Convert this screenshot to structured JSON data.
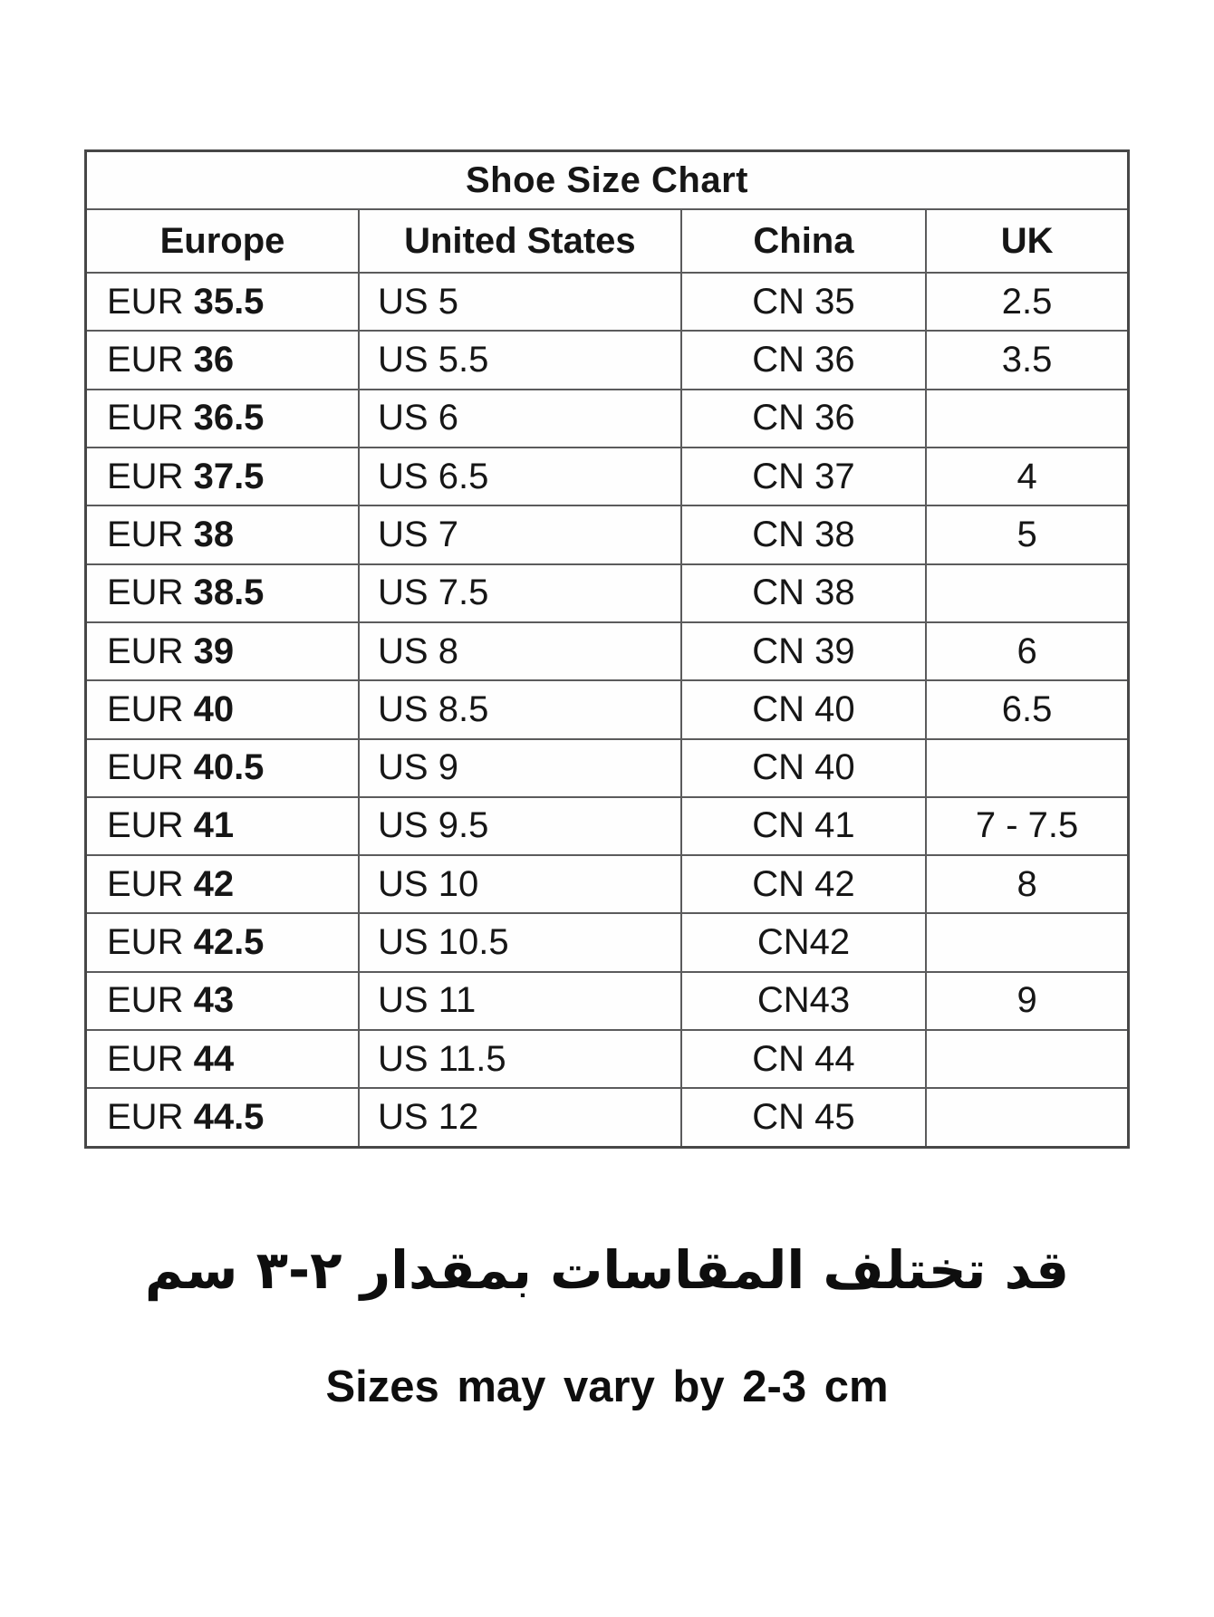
{
  "table": {
    "title": "Shoe Size Chart",
    "columns": [
      "Europe",
      "United States",
      "China",
      "UK"
    ],
    "rows": [
      {
        "eur_label": "EUR",
        "eur_value": "35.5",
        "us": "US 5",
        "china": "CN 35",
        "uk": "2.5"
      },
      {
        "eur_label": "EUR",
        "eur_value": "36",
        "us": "US 5.5",
        "china": "CN 36",
        "uk": "3.5"
      },
      {
        "eur_label": "EUR",
        "eur_value": "36.5",
        "us": "US 6",
        "china": "CN 36",
        "uk": ""
      },
      {
        "eur_label": "EUR",
        "eur_value": "37.5",
        "us": "US 6.5",
        "china": "CN 37",
        "uk": "4"
      },
      {
        "eur_label": "EUR",
        "eur_value": "38",
        "us": "US 7",
        "china": "CN 38",
        "uk": "5"
      },
      {
        "eur_label": "EUR",
        "eur_value": "38.5",
        "us": "US 7.5",
        "china": "CN 38",
        "uk": ""
      },
      {
        "eur_label": "EUR",
        "eur_value": "39",
        "us": "US 8",
        "china": "CN 39",
        "uk": "6"
      },
      {
        "eur_label": "EUR",
        "eur_value": "40",
        "us": "US 8.5",
        "china": "CN 40",
        "uk": "6.5"
      },
      {
        "eur_label": "EUR",
        "eur_value": "40.5",
        "us": "US 9",
        "china": "CN 40",
        "uk": ""
      },
      {
        "eur_label": "EUR",
        "eur_value": "41",
        "us": "US 9.5",
        "china": "CN 41",
        "uk": "7 - 7.5"
      },
      {
        "eur_label": "EUR",
        "eur_value": "42",
        "us": "US 10",
        "china": "CN 42",
        "uk": "8"
      },
      {
        "eur_label": "EUR",
        "eur_value": "42.5",
        "us": "US 10.5",
        "china": "CN42",
        "uk": ""
      },
      {
        "eur_label": "EUR",
        "eur_value": "43",
        "us": "US 11",
        "china": "CN43",
        "uk": "9"
      },
      {
        "eur_label": "EUR",
        "eur_value": "44",
        "us": "US 11.5",
        "china": "CN 44",
        "uk": ""
      },
      {
        "eur_label": "EUR",
        "eur_value": "44.5",
        "us": "US 12",
        "china": "CN 45",
        "uk": ""
      }
    ]
  },
  "captions": {
    "arabic": "قد تختلف المقاسات بمقدار ٢-٣ سم",
    "english": "Sizes may vary by 2-3 cm"
  }
}
